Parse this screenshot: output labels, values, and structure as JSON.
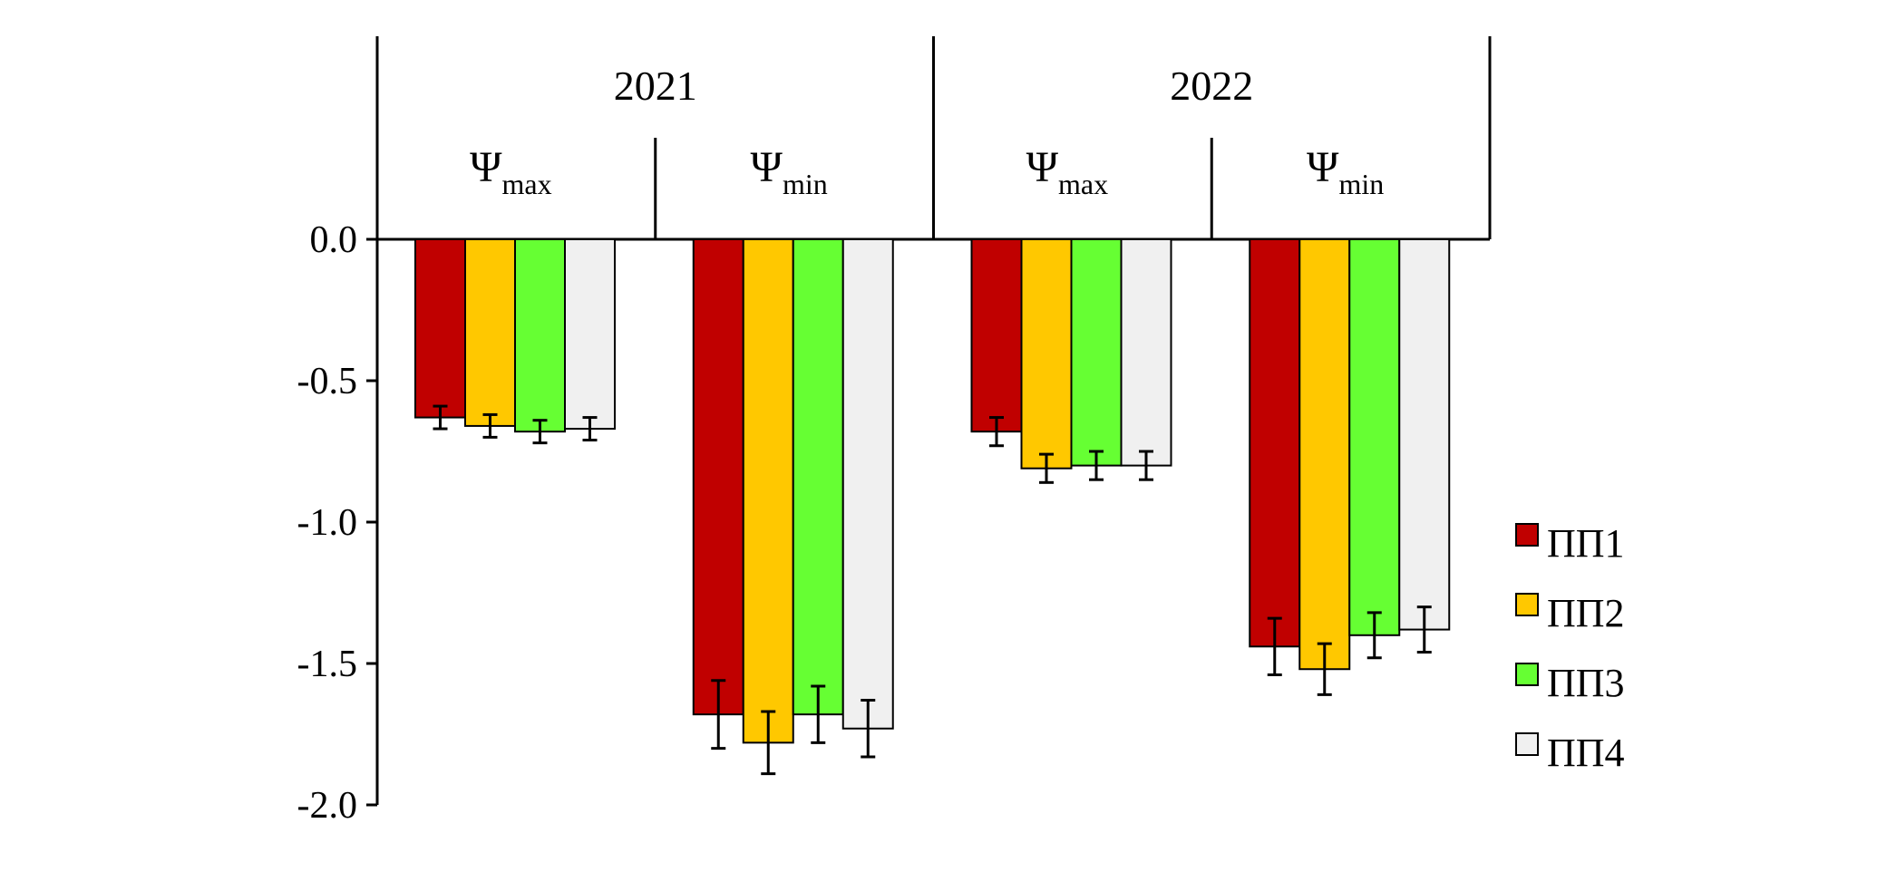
{
  "chart_data": {
    "type": "bar",
    "title": "",
    "xlabel": "",
    "ylabel": "",
    "ylim": [
      -2.0,
      0.0
    ],
    "yticks": [
      "0.0",
      "-0.5",
      "-1.0",
      "-1.5",
      "-2.0"
    ],
    "ytick_values": [
      0.0,
      -0.5,
      -1.0,
      -1.5,
      -2.0
    ],
    "grid": false,
    "legend_position": "right",
    "years": [
      "2021",
      "2022"
    ],
    "symbol": "Ψ",
    "subscripts": [
      "max",
      "min"
    ],
    "groups": [
      {
        "year": "2021",
        "symbol": "Ψ",
        "sub": "max"
      },
      {
        "year": "2021",
        "symbol": "Ψ",
        "sub": "min"
      },
      {
        "year": "2022",
        "symbol": "Ψ",
        "sub": "max"
      },
      {
        "year": "2022",
        "symbol": "Ψ",
        "sub": "min"
      }
    ],
    "series": [
      {
        "name": "ПП1",
        "color": "#C00000",
        "values": [
          -0.63,
          -1.68,
          -0.68,
          -1.44
        ],
        "errors": [
          0.04,
          0.12,
          0.05,
          0.1
        ]
      },
      {
        "name": "ПП2",
        "color": "#FFC800",
        "values": [
          -0.66,
          -1.78,
          -0.81,
          -1.52
        ],
        "errors": [
          0.04,
          0.11,
          0.05,
          0.09
        ]
      },
      {
        "name": "ПП3",
        "color": "#66FF33",
        "values": [
          -0.68,
          -1.68,
          -0.8,
          -1.4
        ],
        "errors": [
          0.04,
          0.1,
          0.05,
          0.08
        ]
      },
      {
        "name": "ПП4",
        "color": "#F0F0F0",
        "values": [
          -0.67,
          -1.73,
          -0.8,
          -1.38
        ],
        "errors": [
          0.04,
          0.1,
          0.05,
          0.08
        ]
      }
    ]
  }
}
